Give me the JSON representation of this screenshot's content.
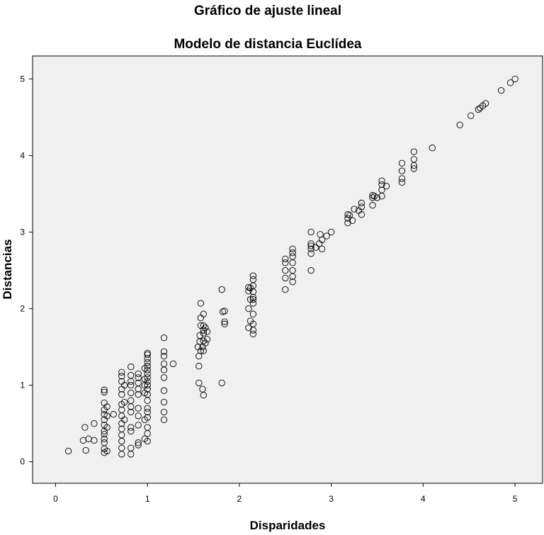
{
  "chart_data": {
    "type": "scatter",
    "title": "Gráfico de ajuste lineal",
    "subtitle": "Modelo de distancia Euclídea",
    "xlabel": "Disparidades",
    "ylabel": "Distancias",
    "xlim": [
      -0.25,
      5.3
    ],
    "ylim": [
      -0.28,
      5.3
    ],
    "xticks": [
      "0",
      "1",
      "2",
      "3",
      "4",
      "5"
    ],
    "yticks": [
      "0",
      "1",
      "2",
      "3",
      "4",
      "5"
    ],
    "grid": false,
    "legend": "none",
    "colors": {
      "plot_background": "#f0f0f0",
      "marker": "#000000",
      "frame": "#000000"
    },
    "points": [
      [
        0.14,
        0.14
      ],
      [
        0.3,
        0.28
      ],
      [
        0.32,
        0.45
      ],
      [
        0.33,
        0.15
      ],
      [
        0.36,
        0.3
      ],
      [
        0.42,
        0.5
      ],
      [
        0.42,
        0.28
      ],
      [
        0.53,
        0.12
      ],
      [
        0.53,
        0.17
      ],
      [
        0.53,
        0.25
      ],
      [
        0.53,
        0.3
      ],
      [
        0.53,
        0.36
      ],
      [
        0.53,
        0.4
      ],
      [
        0.53,
        0.48
      ],
      [
        0.53,
        0.55
      ],
      [
        0.53,
        0.62
      ],
      [
        0.53,
        0.68
      ],
      [
        0.53,
        0.77
      ],
      [
        0.53,
        0.91
      ],
      [
        0.53,
        0.94
      ],
      [
        0.56,
        0.14
      ],
      [
        0.56,
        0.45
      ],
      [
        0.56,
        0.6
      ],
      [
        0.56,
        0.72
      ],
      [
        0.63,
        0.62
      ],
      [
        0.72,
        0.1
      ],
      [
        0.72,
        0.18
      ],
      [
        0.72,
        0.27
      ],
      [
        0.72,
        0.35
      ],
      [
        0.72,
        0.43
      ],
      [
        0.72,
        0.5
      ],
      [
        0.72,
        0.6
      ],
      [
        0.72,
        0.68
      ],
      [
        0.72,
        0.75
      ],
      [
        0.72,
        0.88
      ],
      [
        0.72,
        0.95
      ],
      [
        0.72,
        1.05
      ],
      [
        0.72,
        1.12
      ],
      [
        0.72,
        1.17
      ],
      [
        0.75,
        0.55
      ],
      [
        0.75,
        0.78
      ],
      [
        0.75,
        1.0
      ],
      [
        0.82,
        0.1
      ],
      [
        0.82,
        0.18
      ],
      [
        0.82,
        0.4
      ],
      [
        0.82,
        0.45
      ],
      [
        0.82,
        0.65
      ],
      [
        0.82,
        0.72
      ],
      [
        0.82,
        0.8
      ],
      [
        0.82,
        0.9
      ],
      [
        0.82,
        1.0
      ],
      [
        0.82,
        1.05
      ],
      [
        0.82,
        1.13
      ],
      [
        0.82,
        1.24
      ],
      [
        0.9,
        0.22
      ],
      [
        0.9,
        0.25
      ],
      [
        0.9,
        0.48
      ],
      [
        0.9,
        0.6
      ],
      [
        0.9,
        0.7
      ],
      [
        0.9,
        0.88
      ],
      [
        0.9,
        0.95
      ],
      [
        0.9,
        1.03
      ],
      [
        0.9,
        1.1
      ],
      [
        0.9,
        1.15
      ],
      [
        0.97,
        0.3
      ],
      [
        0.97,
        0.55
      ],
      [
        0.97,
        0.9
      ],
      [
        0.97,
        1.0
      ],
      [
        0.97,
        1.08
      ],
      [
        0.97,
        1.22
      ],
      [
        1.0,
        0.27
      ],
      [
        1.0,
        0.37
      ],
      [
        1.0,
        0.45
      ],
      [
        1.0,
        0.58
      ],
      [
        1.0,
        0.65
      ],
      [
        1.0,
        0.7
      ],
      [
        1.0,
        0.8
      ],
      [
        1.0,
        0.88
      ],
      [
        1.0,
        0.95
      ],
      [
        1.0,
        1.0
      ],
      [
        1.0,
        1.05
      ],
      [
        1.0,
        1.1
      ],
      [
        1.0,
        1.15
      ],
      [
        1.0,
        1.2
      ],
      [
        1.0,
        1.25
      ],
      [
        1.0,
        1.3
      ],
      [
        1.0,
        1.35
      ],
      [
        1.0,
        1.4
      ],
      [
        1.0,
        1.42
      ],
      [
        1.18,
        0.55
      ],
      [
        1.18,
        0.65
      ],
      [
        1.18,
        0.78
      ],
      [
        1.18,
        0.93
      ],
      [
        1.18,
        1.1
      ],
      [
        1.18,
        1.2
      ],
      [
        1.18,
        1.28
      ],
      [
        1.18,
        1.38
      ],
      [
        1.18,
        1.44
      ],
      [
        1.18,
        1.62
      ],
      [
        1.28,
        1.28
      ],
      [
        1.55,
        1.5
      ],
      [
        1.56,
        1.03
      ],
      [
        1.56,
        1.25
      ],
      [
        1.56,
        1.38
      ],
      [
        1.57,
        1.57
      ],
      [
        1.57,
        1.65
      ],
      [
        1.58,
        1.45
      ],
      [
        1.58,
        1.78
      ],
      [
        1.58,
        1.88
      ],
      [
        1.58,
        2.07
      ],
      [
        1.6,
        0.95
      ],
      [
        1.6,
        1.5
      ],
      [
        1.61,
        0.87
      ],
      [
        1.61,
        1.45
      ],
      [
        1.61,
        1.58
      ],
      [
        1.61,
        1.68
      ],
      [
        1.61,
        1.72
      ],
      [
        1.61,
        1.78
      ],
      [
        1.61,
        1.93
      ],
      [
        1.63,
        1.55
      ],
      [
        1.63,
        1.75
      ],
      [
        1.65,
        1.6
      ],
      [
        1.65,
        1.7
      ],
      [
        1.81,
        1.03
      ],
      [
        1.81,
        2.25
      ],
      [
        1.82,
        1.96
      ],
      [
        1.84,
        1.8
      ],
      [
        1.84,
        1.83
      ],
      [
        1.84,
        1.97
      ],
      [
        2.1,
        1.75
      ],
      [
        2.1,
        2.0
      ],
      [
        2.1,
        2.23
      ],
      [
        2.1,
        2.28
      ],
      [
        2.12,
        1.84
      ],
      [
        2.12,
        2.12
      ],
      [
        2.12,
        2.27
      ],
      [
        2.15,
        1.67
      ],
      [
        2.15,
        1.72
      ],
      [
        2.15,
        1.8
      ],
      [
        2.15,
        1.93
      ],
      [
        2.15,
        2.07
      ],
      [
        2.15,
        2.12
      ],
      [
        2.15,
        2.15
      ],
      [
        2.15,
        2.22
      ],
      [
        2.15,
        2.3
      ],
      [
        2.15,
        2.38
      ],
      [
        2.15,
        2.43
      ],
      [
        2.5,
        2.25
      ],
      [
        2.5,
        2.4
      ],
      [
        2.5,
        2.5
      ],
      [
        2.5,
        2.6
      ],
      [
        2.5,
        2.65
      ],
      [
        2.58,
        2.35
      ],
      [
        2.58,
        2.42
      ],
      [
        2.58,
        2.5
      ],
      [
        2.58,
        2.6
      ],
      [
        2.58,
        2.68
      ],
      [
        2.58,
        2.73
      ],
      [
        2.58,
        2.78
      ],
      [
        2.78,
        2.5
      ],
      [
        2.78,
        2.72
      ],
      [
        2.78,
        2.78
      ],
      [
        2.78,
        2.82
      ],
      [
        2.78,
        2.85
      ],
      [
        2.78,
        3.0
      ],
      [
        2.83,
        2.8
      ],
      [
        2.87,
        2.85
      ],
      [
        2.88,
        2.97
      ],
      [
        2.9,
        2.78
      ],
      [
        2.9,
        2.9
      ],
      [
        2.95,
        2.95
      ],
      [
        3.0,
        3.0
      ],
      [
        3.18,
        3.12
      ],
      [
        3.18,
        3.18
      ],
      [
        3.18,
        3.23
      ],
      [
        3.2,
        3.22
      ],
      [
        3.23,
        3.15
      ],
      [
        3.25,
        3.3
      ],
      [
        3.3,
        3.28
      ],
      [
        3.33,
        3.23
      ],
      [
        3.33,
        3.33
      ],
      [
        3.33,
        3.38
      ],
      [
        3.45,
        3.35
      ],
      [
        3.45,
        3.45
      ],
      [
        3.45,
        3.48
      ],
      [
        3.47,
        3.47
      ],
      [
        3.5,
        3.45
      ],
      [
        3.55,
        3.47
      ],
      [
        3.55,
        3.55
      ],
      [
        3.55,
        3.62
      ],
      [
        3.55,
        3.67
      ],
      [
        3.6,
        3.6
      ],
      [
        3.77,
        3.65
      ],
      [
        3.77,
        3.7
      ],
      [
        3.77,
        3.8
      ],
      [
        3.77,
        3.9
      ],
      [
        3.9,
        3.83
      ],
      [
        3.9,
        3.87
      ],
      [
        3.9,
        3.95
      ],
      [
        3.9,
        4.05
      ],
      [
        4.1,
        4.1
      ],
      [
        4.4,
        4.4
      ],
      [
        4.52,
        4.52
      ],
      [
        4.6,
        4.6
      ],
      [
        4.62,
        4.62
      ],
      [
        4.65,
        4.65
      ],
      [
        4.68,
        4.68
      ],
      [
        4.85,
        4.85
      ],
      [
        4.95,
        4.95
      ],
      [
        5.0,
        5.0
      ]
    ]
  }
}
